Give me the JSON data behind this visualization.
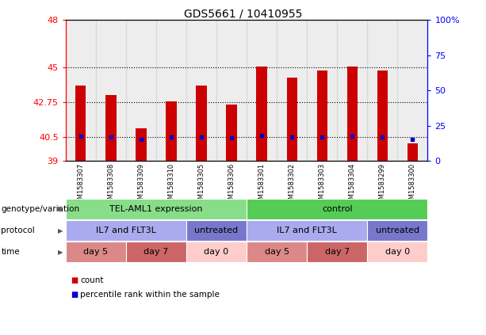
{
  "title": "GDS5661 / 10410955",
  "samples": [
    "GSM1583307",
    "GSM1583308",
    "GSM1583309",
    "GSM1583310",
    "GSM1583305",
    "GSM1583306",
    "GSM1583301",
    "GSM1583302",
    "GSM1583303",
    "GSM1583304",
    "GSM1583299",
    "GSM1583300"
  ],
  "bar_values": [
    43.8,
    43.2,
    41.1,
    42.8,
    43.8,
    42.6,
    45.05,
    44.3,
    44.8,
    45.05,
    44.8,
    40.1
  ],
  "percentile_values": [
    40.55,
    40.5,
    40.35,
    40.5,
    40.5,
    40.45,
    40.6,
    40.5,
    40.5,
    40.55,
    40.5,
    40.35
  ],
  "ymin": 39,
  "ymax": 48,
  "y_ticks": [
    39,
    40.5,
    42.75,
    45,
    48
  ],
  "y2_ticks_vals": [
    0,
    25,
    50,
    75,
    100
  ],
  "grid_lines": [
    40.5,
    42.75,
    45
  ],
  "bar_color": "#cc0000",
  "percentile_color": "#0000cc",
  "genotype_labels": [
    {
      "text": "TEL-AML1 expression",
      "start": 0,
      "end": 5,
      "color": "#88dd88"
    },
    {
      "text": "control",
      "start": 6,
      "end": 11,
      "color": "#55cc55"
    }
  ],
  "protocol_labels": [
    {
      "text": "IL7 and FLT3L",
      "start": 0,
      "end": 3,
      "color": "#aaaaee"
    },
    {
      "text": "untreated",
      "start": 4,
      "end": 5,
      "color": "#7777cc"
    },
    {
      "text": "IL7 and FLT3L",
      "start": 6,
      "end": 9,
      "color": "#aaaaee"
    },
    {
      "text": "untreated",
      "start": 10,
      "end": 11,
      "color": "#7777cc"
    }
  ],
  "time_labels": [
    {
      "text": "day 5",
      "start": 0,
      "end": 1,
      "color": "#dd8888"
    },
    {
      "text": "day 7",
      "start": 2,
      "end": 3,
      "color": "#cc6666"
    },
    {
      "text": "day 0",
      "start": 4,
      "end": 5,
      "color": "#ffcccc"
    },
    {
      "text": "day 5",
      "start": 6,
      "end": 7,
      "color": "#dd8888"
    },
    {
      "text": "day 7",
      "start": 8,
      "end": 9,
      "color": "#cc6666"
    },
    {
      "text": "day 0",
      "start": 10,
      "end": 11,
      "color": "#ffcccc"
    }
  ],
  "row_labels": [
    "genotype/variation",
    "protocol",
    "time"
  ],
  "legend_items": [
    {
      "label": "count",
      "color": "#cc0000"
    },
    {
      "label": "percentile rank within the sample",
      "color": "#0000cc"
    }
  ],
  "sample_bg": "#cccccc",
  "sample_border": "#888888"
}
